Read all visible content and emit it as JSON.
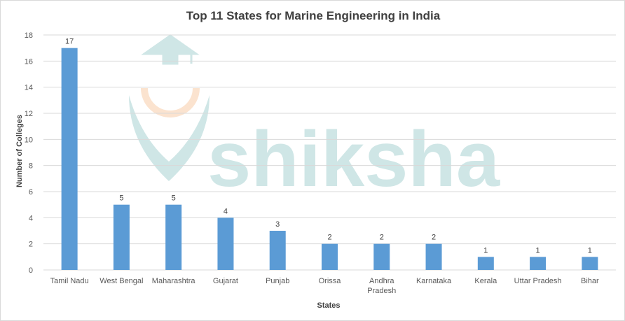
{
  "chart_data": {
    "type": "bar",
    "title": "Top 11 States for Marine Engineering in India",
    "xlabel": "States",
    "ylabel": "Number of Colleges",
    "categories": [
      [
        "Tamil Nadu"
      ],
      [
        "West Bengal"
      ],
      [
        "Maharashtra"
      ],
      [
        "Gujarat"
      ],
      [
        "Punjab"
      ],
      [
        "Orissa"
      ],
      [
        "Andhra",
        "Pradesh"
      ],
      [
        "Karnataka"
      ],
      [
        "Kerala"
      ],
      [
        "Uttar Pradesh"
      ],
      [
        "Bihar"
      ]
    ],
    "values": [
      17,
      5,
      5,
      4,
      3,
      2,
      2,
      2,
      1,
      1,
      1
    ],
    "ylim": [
      0,
      18
    ],
    "yticks": [
      0,
      2,
      4,
      6,
      8,
      10,
      12,
      14,
      16,
      18
    ],
    "grid": true,
    "bar_color": "#5b9bd5",
    "gridline_color": "#d9d9d9"
  },
  "watermark": {
    "text": "shiksha",
    "text_color": "#cfe6e6",
    "accent_color": "#fbe3cf"
  }
}
